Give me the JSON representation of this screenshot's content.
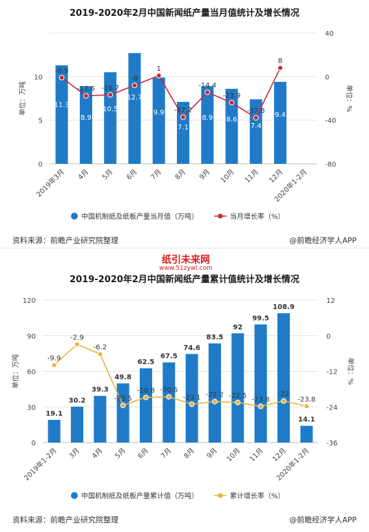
{
  "watermark": {
    "site_name": "纸引未来网",
    "site_url": "www.51zywl.com"
  },
  "charts": [
    {
      "title": "2019-2020年2月中国新闻纸产量当月值统计及增长情况",
      "source": "资料来源：前瞻产业研究院整理",
      "brand": "@前瞻经济学人APP"
    },
    {
      "title": "2019-2020年2月中国新闻纸产量累计值统计及增长情况",
      "source": "资料来源：前瞻产业研究院整理",
      "brand": "@前瞻经济学人APP"
    }
  ],
  "chart_data": [
    {
      "type": "bar",
      "title": "2019-2020年2月中国新闻纸产量当月值统计及增长情况",
      "categories": [
        "2019年3月",
        "4月",
        "5月",
        "6月",
        "7月",
        "8月",
        "9月",
        "10月",
        "11月",
        "12月",
        "2020年1-2月"
      ],
      "ylabel": "单位：万吨",
      "y2label": "单位：%",
      "ylim": [
        0,
        15
      ],
      "yticks": [
        0,
        5,
        10
      ],
      "y2lim": [
        -80,
        40
      ],
      "y2ticks": [
        -80,
        -40,
        0,
        40
      ],
      "series": [
        {
          "name": "中国机制纸及纸板产量当月值（万吨）",
          "type": "bar",
          "axis": "left",
          "color": "#1f7bc8",
          "values": [
            11.3,
            8.9,
            10.5,
            12.7,
            9.9,
            7.1,
            8.9,
            8.6,
            7.4,
            9.4,
            null
          ],
          "labels": [
            "11.3",
            "8.9",
            "10.5",
            "12.7",
            "9.9",
            "7.1",
            "8.9",
            "8.6",
            "7.4",
            "9.4",
            ""
          ]
        },
        {
          "name": "当月增长率（%）",
          "type": "line",
          "axis": "right",
          "color": "#c8283c",
          "values": [
            -0.9,
            -17.6,
            -16.7,
            -8,
            1,
            -37.2,
            -14.4,
            -23.9,
            -37.8,
            8,
            null
          ],
          "labels": [
            "-0.9",
            "-17.6",
            "-16.7",
            "-8",
            "1",
            "-37.2",
            "-14.4",
            "-23.9",
            "-37.8",
            "8",
            ""
          ]
        }
      ],
      "legend_position": "bottom",
      "grid": true
    },
    {
      "type": "bar",
      "title": "2019-2020年2月中国新闻纸产量累计值统计及增长情况",
      "categories": [
        "2019年1-2月",
        "3月",
        "4月",
        "5月",
        "6月",
        "7月",
        "8月",
        "9月",
        "10月",
        "11月",
        "12月",
        "2020年1-2月"
      ],
      "ylabel": "单位：万吨",
      "y2label": "单位：%",
      "ylim": [
        0,
        120
      ],
      "yticks": [
        0,
        30,
        60,
        90,
        120
      ],
      "y2lim": [
        -36,
        12
      ],
      "y2ticks": [
        -36,
        -24,
        -12,
        0,
        12
      ],
      "series": [
        {
          "name": "中国机制纸及纸板产量累计值（万吨）",
          "type": "bar",
          "axis": "left",
          "color": "#1f7bc8",
          "values": [
            19.1,
            30.2,
            39.3,
            49.8,
            62.5,
            67.5,
            74.6,
            83.5,
            92,
            99.5,
            108.9,
            14.1
          ],
          "labels": [
            "19.1",
            "30.2",
            "39.3",
            "49.8",
            "62.5",
            "67.5",
            "74.6",
            "83.5",
            "92",
            "99.5",
            "108.9",
            "14.1"
          ]
        },
        {
          "name": "累计增长率（%）",
          "type": "line",
          "axis": "right",
          "color": "#e8b43c",
          "values": [
            -9.9,
            -2.9,
            -6.2,
            -23.5,
            -20.8,
            -20.6,
            -23.1,
            -22.2,
            -22.5,
            -23.8,
            -22,
            -23.8
          ],
          "labels": [
            "-9.9",
            "-2.9",
            "-6.2",
            "-23.5",
            "-20.8",
            "-20.6",
            "-23.1",
            "-22.2",
            "-22.5",
            "-23.8",
            "-22",
            "-23.8"
          ]
        }
      ],
      "legend_position": "bottom",
      "grid": true
    }
  ]
}
